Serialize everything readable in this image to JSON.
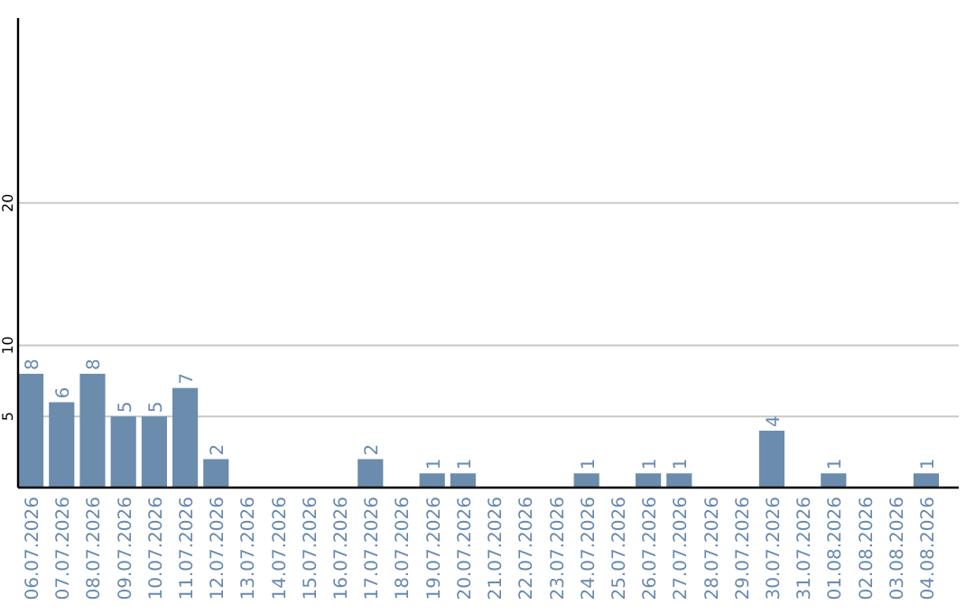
{
  "chart_data": {
    "type": "bar",
    "categories": [
      "06.07.2026",
      "07.07.2026",
      "08.07.2026",
      "09.07.2026",
      "10.07.2026",
      "11.07.2026",
      "12.07.2026",
      "13.07.2026",
      "14.07.2026",
      "15.07.2026",
      "16.07.2026",
      "17.07.2026",
      "18.07.2026",
      "19.07.2026",
      "20.07.2026",
      "21.07.2026",
      "22.07.2026",
      "23.07.2026",
      "24.07.2026",
      "25.07.2026",
      "26.07.2026",
      "27.07.2026",
      "28.07.2026",
      "29.07.2026",
      "30.07.2026",
      "31.07.2026",
      "01.08.2026",
      "02.08.2026",
      "03.08.2026",
      "04.08.2026"
    ],
    "values": [
      8,
      6,
      8,
      5,
      5,
      7,
      2,
      0,
      0,
      0,
      0,
      2,
      0,
      1,
      1,
      0,
      0,
      0,
      1,
      0,
      1,
      1,
      0,
      0,
      4,
      0,
      1,
      0,
      0,
      1
    ],
    "value_labels": [
      "8",
      "6",
      "8",
      "5",
      "5",
      "7",
      "2",
      null,
      null,
      null,
      null,
      "2",
      null,
      "1",
      "1",
      null,
      null,
      null,
      "1",
      null,
      "1",
      "1",
      null,
      null,
      "4",
      null,
      "1",
      null,
      null,
      "1"
    ],
    "color": "#6b8cad",
    "ylim": [
      0,
      33
    ],
    "yticks": [
      5,
      10,
      20
    ],
    "grid": "y"
  }
}
